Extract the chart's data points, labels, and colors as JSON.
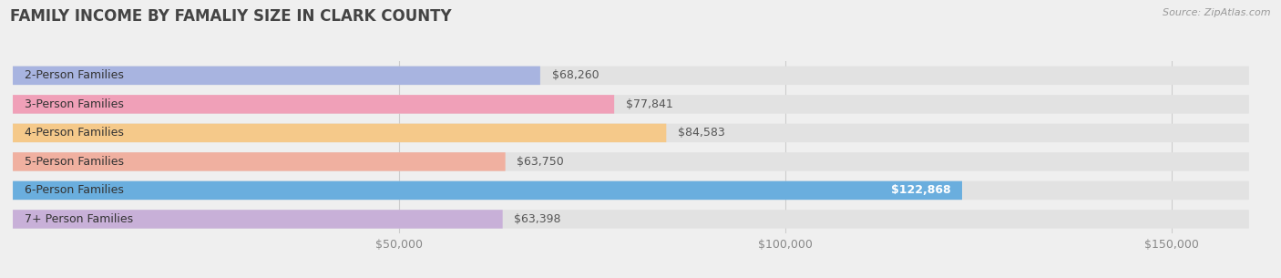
{
  "title": "FAMILY INCOME BY FAMALIY SIZE IN CLARK COUNTY",
  "source": "Source: ZipAtlas.com",
  "categories": [
    "2-Person Families",
    "3-Person Families",
    "4-Person Families",
    "5-Person Families",
    "6-Person Families",
    "7+ Person Families"
  ],
  "values": [
    68260,
    77841,
    84583,
    63750,
    122868,
    63398
  ],
  "bar_colors": [
    "#a8b4e0",
    "#f0a0b8",
    "#f5c98a",
    "#f0b0a0",
    "#6aaede",
    "#c8b0d8"
  ],
  "label_colors": [
    "#555555",
    "#555555",
    "#555555",
    "#555555",
    "#ffffff",
    "#555555"
  ],
  "background_color": "#efefef",
  "bar_background_color": "#e2e2e2",
  "title_color": "#444444",
  "source_color": "#999999",
  "xmin": 0,
  "xmax": 160000,
  "xticks": [
    0,
    50000,
    100000,
    150000
  ],
  "xtick_labels": [
    "",
    "$50,000",
    "$100,000",
    "$150,000"
  ],
  "bar_height": 0.65,
  "label_fontsize": 9,
  "title_fontsize": 12,
  "tick_fontsize": 9,
  "rounding_size": 0.25
}
